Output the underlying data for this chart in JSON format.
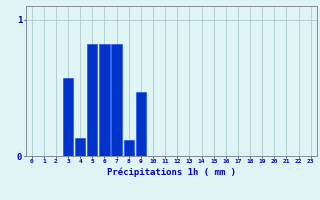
{
  "values": [
    0,
    0,
    0,
    0.57,
    0.13,
    0.82,
    0.82,
    0.82,
    0.12,
    0.47,
    0,
    0,
    0,
    0,
    0,
    0,
    0,
    0,
    0,
    0,
    0,
    0,
    0,
    0
  ],
  "bar_color": "#0033cc",
  "bar_edge_color": "#1144ee",
  "background_color": "#dff4f4",
  "grid_color": "#aacccc",
  "axis_color": "#888899",
  "xlabel": "Précipitations 1h ( mm )",
  "xlabel_color": "#0000bb",
  "tick_color": "#0000bb",
  "yticks": [
    0,
    1
  ],
  "ylim": [
    0,
    1.1
  ],
  "xlim": [
    -0.5,
    23.5
  ],
  "bar_width": 0.85,
  "xticks": [
    0,
    1,
    2,
    3,
    4,
    5,
    6,
    7,
    8,
    9,
    10,
    11,
    12,
    13,
    14,
    15,
    16,
    17,
    18,
    19,
    20,
    21,
    22,
    23
  ]
}
